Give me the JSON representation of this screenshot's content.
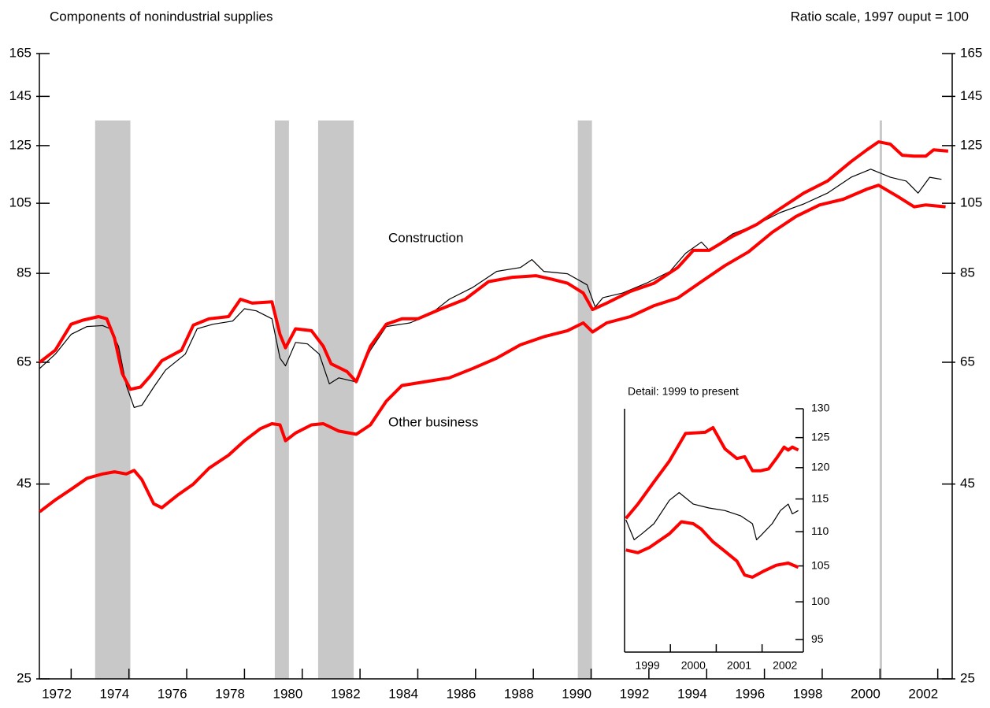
{
  "chart_data": [
    {
      "type": "line",
      "title": "Components of nonindustrial supplies",
      "subtitle": "Ratio scale, 1997 ouput = 100",
      "log_y": true,
      "y_axis": "both",
      "xlim": [
        1971.9,
        2003.5
      ],
      "ylim": [
        25,
        165
      ],
      "yticks": [
        25,
        45,
        65,
        85,
        105,
        125,
        145,
        165
      ],
      "xticks": [
        {
          "value": 1972.5,
          "label": "1972"
        },
        {
          "value": 1974.5,
          "label": "1974"
        },
        {
          "value": 1976.5,
          "label": "1976"
        },
        {
          "value": 1978.5,
          "label": "1978"
        },
        {
          "value": 1980.5,
          "label": "1980"
        },
        {
          "value": 1982.5,
          "label": "1982"
        },
        {
          "value": 1984.5,
          "label": "1984"
        },
        {
          "value": 1986.5,
          "label": "1986"
        },
        {
          "value": 1988.5,
          "label": "1988"
        },
        {
          "value": 1990.5,
          "label": "1990"
        },
        {
          "value": 1992.5,
          "label": "1992"
        },
        {
          "value": 1994.5,
          "label": "1994"
        },
        {
          "value": 1996.5,
          "label": "1996"
        },
        {
          "value": 1998.5,
          "label": "1998"
        },
        {
          "value": 2000.5,
          "label": "2000"
        },
        {
          "value": 2002.5,
          "label": "2002"
        }
      ],
      "xtick_marks": [
        1973,
        1975,
        1977,
        1979,
        1981,
        1983,
        1985,
        1987,
        1989,
        1991,
        1993,
        1995,
        1997,
        1999,
        2001,
        2003
      ],
      "recessions": [
        [
          1973.83,
          1975.05
        ],
        [
          1980.05,
          1980.54
        ],
        [
          1981.55,
          1982.78
        ],
        [
          1990.54,
          1991.03
        ]
      ],
      "recession_line": 2001.03,
      "series": [
        {
          "color": "#000000",
          "width": 1.2,
          "x": [
            1971.91,
            1972.45,
            1973,
            1973.55,
            1974.09,
            1974.36,
            1974.64,
            1974.91,
            1975.18,
            1975.45,
            1975.86,
            1976.27,
            1976.95,
            1977.36,
            1977.91,
            1978.59,
            1979.0,
            1979.41,
            1979.95,
            1980.23,
            1980.42,
            1980.77,
            1981.18,
            1981.59,
            1981.94,
            1982.27,
            1982.82,
            1983.36,
            1983.91,
            1984.73,
            1985.41,
            1986.09,
            1986.91,
            1987.73,
            1988.55,
            1988.95,
            1989.36,
            1990.18,
            1990.86,
            1991.14,
            1991.41,
            1992.09,
            1992.91,
            1993.73,
            1994.27,
            1994.82,
            1995.09,
            1995.91,
            1996.73,
            1997.54,
            1998.36,
            1999.18,
            2000.0,
            2000.68,
            2001.36,
            2001.91,
            2002.32,
            2002.72,
            2003.13
          ],
          "values": [
            63.8,
            66.6,
            70.7,
            72.4,
            72.6,
            71.9,
            68.2,
            60.6,
            56.7,
            57.1,
            60.3,
            63.5,
            66.6,
            71.9,
            72.9,
            73.6,
            76.4,
            75.9,
            74.1,
            65.8,
            64.3,
            69.0,
            68.7,
            66.6,
            60.9,
            62.0,
            61.3,
            67.4,
            72.4,
            73.2,
            75.0,
            78.6,
            81.5,
            85.5,
            86.5,
            88.6,
            85.5,
            84.9,
            82.1,
            76.8,
            79.0,
            80.1,
            82.5,
            85.5,
            90.3,
            93.4,
            91.1,
            95.8,
            98.5,
            102.1,
            104.8,
            108.3,
            113.6,
            116.4,
            113.6,
            112.3,
            108.3,
            113.6,
            112.9
          ]
        },
        {
          "name": "Construction",
          "color": "#ff0000",
          "width": 4,
          "x": [
            1971.91,
            1972.45,
            1973.0,
            1973.41,
            1973.95,
            1974.23,
            1974.5,
            1974.77,
            1975.05,
            1975.4,
            1975.73,
            1976.14,
            1976.82,
            1977.23,
            1977.77,
            1978.45,
            1978.86,
            1979.27,
            1979.95,
            1980.23,
            1980.42,
            1980.77,
            1981.32,
            1981.73,
            1982.0,
            1982.55,
            1982.87,
            1983.36,
            1983.91,
            1984.45,
            1985.0,
            1985.82,
            1986.64,
            1987.45,
            1988.27,
            1989.09,
            1989.64,
            1990.18,
            1990.73,
            1991.05,
            1991.54,
            1992.36,
            1993.18,
            1994.0,
            1994.54,
            1995.09,
            1995.91,
            1996.73,
            1997.54,
            1998.36,
            1999.18,
            2000.0,
            2000.55,
            2000.95,
            2001.36,
            2001.77,
            2002.18,
            2002.59,
            2002.86,
            2003.36
          ],
          "values": [
            65.0,
            67.4,
            72.9,
            73.8,
            74.6,
            74.1,
            69.9,
            62.8,
            59.9,
            60.3,
            62.3,
            65.3,
            67.4,
            72.7,
            74.1,
            74.6,
            78.6,
            77.7,
            78.0,
            70.7,
            67.9,
            71.9,
            71.5,
            68.2,
            64.7,
            63.2,
            61.3,
            68.2,
            72.9,
            74.1,
            74.1,
            76.4,
            78.6,
            82.9,
            84.0,
            84.4,
            83.5,
            82.5,
            80.1,
            76.2,
            77.7,
            80.5,
            82.5,
            86.5,
            91.1,
            91.1,
            95.1,
            98.5,
            103.3,
            108.3,
            112.3,
            119.1,
            123.4,
            126.4,
            125.5,
            121.4,
            121.1,
            121.1,
            123.4,
            122.9
          ]
        },
        {
          "name": "Other business",
          "color": "#ff0000",
          "width": 4,
          "x": [
            1971.91,
            1972.45,
            1973,
            1973.55,
            1974.09,
            1974.5,
            1974.91,
            1975.18,
            1975.45,
            1975.86,
            1976.14,
            1976.68,
            1977.23,
            1977.77,
            1978.45,
            1979.0,
            1979.55,
            1979.95,
            1980.23,
            1980.42,
            1980.77,
            1981.32,
            1981.73,
            1982.27,
            1982.87,
            1983.36,
            1983.91,
            1984.45,
            1985.27,
            1986.09,
            1986.91,
            1987.73,
            1988.55,
            1989.36,
            1990.18,
            1990.73,
            1991.05,
            1991.54,
            1992.36,
            1993.18,
            1994.0,
            1994.82,
            1995.63,
            1996.45,
            1997.27,
            1998.09,
            1998.91,
            1999.73,
            2000.55,
            2000.95,
            2001.63,
            2002.18,
            2002.59,
            2003.27
          ],
          "values": [
            41.4,
            42.9,
            44.3,
            45.8,
            46.4,
            46.7,
            46.4,
            46.9,
            45.6,
            42.4,
            41.9,
            43.5,
            45.0,
            47.2,
            49.1,
            51.3,
            53.2,
            54.0,
            53.8,
            51.3,
            52.5,
            53.8,
            54.0,
            52.8,
            52.3,
            53.8,
            57.8,
            60.6,
            61.3,
            62.0,
            63.8,
            65.8,
            68.5,
            70.2,
            71.5,
            73.2,
            71.2,
            73.2,
            74.6,
            77.1,
            78.9,
            82.9,
            87.0,
            90.7,
            96.2,
            100.9,
            104.5,
            106.3,
            109.6,
            110.9,
            107.1,
            103.9,
            104.5,
            103.9
          ]
        }
      ]
    },
    {
      "type": "line",
      "title": "Detail: 1999 to present",
      "log_y": true,
      "y_axis": "right",
      "xlim": [
        1999,
        2002.9
      ],
      "ylim": [
        93.4,
        130
      ],
      "yticks": [
        95,
        100,
        105,
        110,
        115,
        120,
        125,
        130
      ],
      "xticks": [
        {
          "value": 1999.5,
          "label": "1999"
        },
        {
          "value": 2000.5,
          "label": "2000"
        },
        {
          "value": 2001.5,
          "label": "2001"
        },
        {
          "value": 2002.5,
          "label": "2002"
        }
      ],
      "xtick_marks": [
        2000,
        2001,
        2002
      ],
      "series": [
        {
          "color": "#000000",
          "width": 1.2,
          "x": [
            1999.03,
            1999.21,
            1999.38,
            1999.64,
            1999.98,
            2000.19,
            2000.5,
            2000.84,
            2001.19,
            2001.53,
            2001.79,
            2001.88,
            2001.97,
            2002.22,
            2002.4,
            2002.57,
            2002.66,
            2002.79
          ],
          "values": [
            111.8,
            108.8,
            109.7,
            111.2,
            114.8,
            116.0,
            114.2,
            113.6,
            113.2,
            112.4,
            111.2,
            108.8,
            109.4,
            111.2,
            113.2,
            114.2,
            112.7,
            113.2
          ]
        },
        {
          "color": "#ff0000",
          "width": 4,
          "x": [
            1999.03,
            1999.29,
            1999.64,
            1999.98,
            2000.33,
            2000.76,
            2000.93,
            2001.19,
            2001.45,
            2001.62,
            2001.79,
            2001.97,
            2002.14,
            2002.31,
            2002.48,
            2002.57,
            2002.66,
            2002.79
          ],
          "values": [
            112.0,
            114.2,
            117.7,
            121.1,
            125.7,
            125.9,
            126.7,
            123.1,
            121.5,
            121.8,
            119.5,
            119.5,
            119.8,
            121.5,
            123.4,
            122.9,
            123.4,
            122.9
          ]
        },
        {
          "color": "#ff0000",
          "width": 4,
          "x": [
            1999.03,
            1999.29,
            1999.55,
            1999.98,
            2000.24,
            2000.5,
            2000.67,
            2000.93,
            2001.19,
            2001.45,
            2001.62,
            2001.79,
            2002.05,
            2002.31,
            2002.57,
            2002.79
          ],
          "values": [
            107.3,
            106.9,
            107.7,
            109.7,
            111.5,
            111.2,
            110.4,
            108.5,
            107.1,
            105.7,
            103.7,
            103.4,
            104.3,
            105.1,
            105.4,
            104.8
          ]
        }
      ]
    }
  ]
}
